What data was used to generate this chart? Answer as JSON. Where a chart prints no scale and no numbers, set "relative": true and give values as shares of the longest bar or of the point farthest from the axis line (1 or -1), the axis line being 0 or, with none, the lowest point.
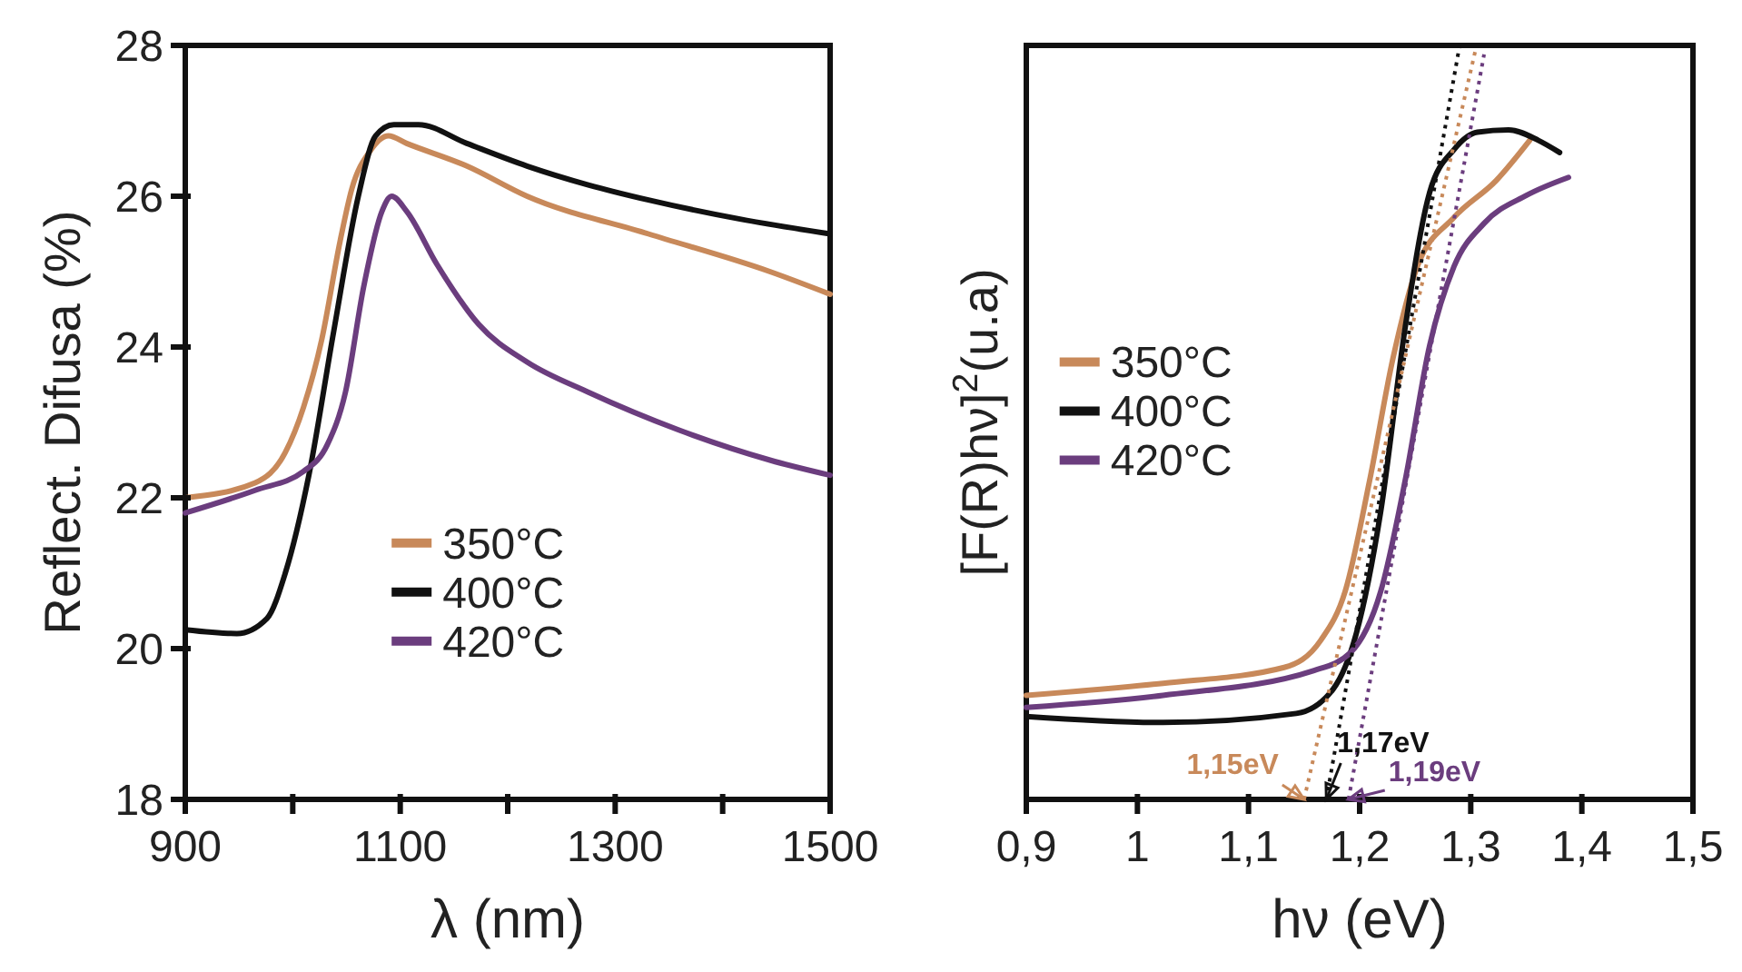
{
  "chart_data": [
    {
      "type": "line",
      "xlabel": "λ (nm)",
      "ylabel": "Reflect. Difusa (%)",
      "xlim": [
        900,
        1500
      ],
      "ylim": [
        18,
        28
      ],
      "xticks": [
        900,
        {
          "value": 1000,
          "label": null
        },
        1100,
        {
          "value": 1200,
          "label": null
        },
        1300,
        {
          "value": 1400,
          "label": null
        },
        1500
      ],
      "yticks": [
        18,
        20,
        22,
        24,
        26,
        28
      ],
      "legend": "bottom",
      "grid": false,
      "series": [
        {
          "name": "350°C",
          "color": "#c8895a",
          "x": [
            900,
            965,
            993,
            1010,
            1027,
            1044,
            1055,
            1072,
            1089,
            1106,
            1162,
            1218,
            1331,
            1444,
            1500
          ],
          "values": [
            22.0,
            22.2,
            22.6,
            23.2,
            24.1,
            25.4,
            26.1,
            26.6,
            26.8,
            26.7,
            26.4,
            26.0,
            25.5,
            25.0,
            24.7
          ]
        },
        {
          "name": "400°C",
          "color": "#111111",
          "x": [
            900,
            948,
            976,
            993,
            1015,
            1038,
            1061,
            1077,
            1094,
            1117,
            1162,
            1218,
            1275,
            1331,
            1415,
            1500
          ],
          "values": [
            20.25,
            20.2,
            20.4,
            21.0,
            22.3,
            24.2,
            26.0,
            26.8,
            26.95,
            26.95,
            26.7,
            26.4,
            26.15,
            25.95,
            25.7,
            25.5
          ]
        },
        {
          "name": "420°C",
          "color": "#6b3d7e",
          "x": [
            900,
            965,
            1010,
            1032,
            1049,
            1066,
            1083,
            1092,
            1106,
            1134,
            1173,
            1218,
            1275,
            1359,
            1444,
            1500
          ],
          "values": [
            21.8,
            22.1,
            22.35,
            22.7,
            23.4,
            24.8,
            25.8,
            26.0,
            25.8,
            25.1,
            24.3,
            23.8,
            23.4,
            22.9,
            22.5,
            22.3
          ]
        }
      ]
    },
    {
      "type": "line",
      "relative": true,
      "xlabel": "hν (eV)",
      "ylabel": "[F(R)hν]$^{2}$(u.a)",
      "xlim": [
        0.9,
        1.5
      ],
      "xticks": [
        {
          "value": 0.9,
          "label": "0,9"
        },
        1,
        {
          "value": 1.1,
          "label": "1,1"
        },
        {
          "value": 1.2,
          "label": "1,2"
        },
        {
          "value": 1.3,
          "label": "1,3"
        },
        {
          "value": 1.4,
          "label": "1,4"
        },
        {
          "value": 1.5,
          "label": "1,5"
        }
      ],
      "legend": "center left",
      "grid": false,
      "annotations": [
        {
          "text": "1,15eV",
          "x": 1.15,
          "y": 0
        },
        {
          "text": "1,17eV",
          "x": 1.17,
          "y": 0
        },
        {
          "text": "1,19eV",
          "x": 1.19,
          "y": 0
        }
      ],
      "series": [
        {
          "name": "350°C",
          "color": "#c8895a",
          "x": [
            0.9,
            1.023,
            1.132,
            1.165,
            1.187,
            1.209,
            1.23,
            1.252,
            1.285,
            1.323,
            1.353
          ],
          "values": [
            0.138,
            0.154,
            0.175,
            0.211,
            0.276,
            0.423,
            0.585,
            0.707,
            0.772,
            0.821,
            0.874
          ]
        },
        {
          "name": "400°C",
          "color": "#111111",
          "x": [
            0.9,
            1.023,
            1.143,
            1.176,
            1.197,
            1.219,
            1.241,
            1.263,
            1.285,
            1.306,
            1.334,
            1.361,
            1.38
          ],
          "values": [
            0.11,
            0.102,
            0.114,
            0.146,
            0.22,
            0.382,
            0.626,
            0.805,
            0.862,
            0.885,
            0.888,
            0.874,
            0.858
          ]
        },
        {
          "name": "420°C",
          "color": "#6b3d7e",
          "x": [
            0.9,
            1.023,
            1.159,
            1.192,
            1.219,
            1.241,
            1.263,
            1.285,
            1.312,
            1.35,
            1.388
          ],
          "values": [
            0.122,
            0.138,
            0.171,
            0.195,
            0.276,
            0.423,
            0.602,
            0.707,
            0.764,
            0.801,
            0.825
          ]
        },
        {
          "type": "line",
          "line_style": "dotted",
          "color": "#c8895a",
          "x": [
            1.15,
            1.304
          ],
          "values": [
            0,
            0.992
          ]
        },
        {
          "type": "line",
          "line_style": "dotted",
          "color": "#111111",
          "x": [
            1.17,
            1.29
          ],
          "values": [
            0,
            1.0
          ]
        },
        {
          "type": "line",
          "line_style": "dotted",
          "color": "#6b3d7e",
          "x": [
            1.19,
            1.312
          ],
          "values": [
            0,
            0.988
          ]
        }
      ]
    }
  ]
}
